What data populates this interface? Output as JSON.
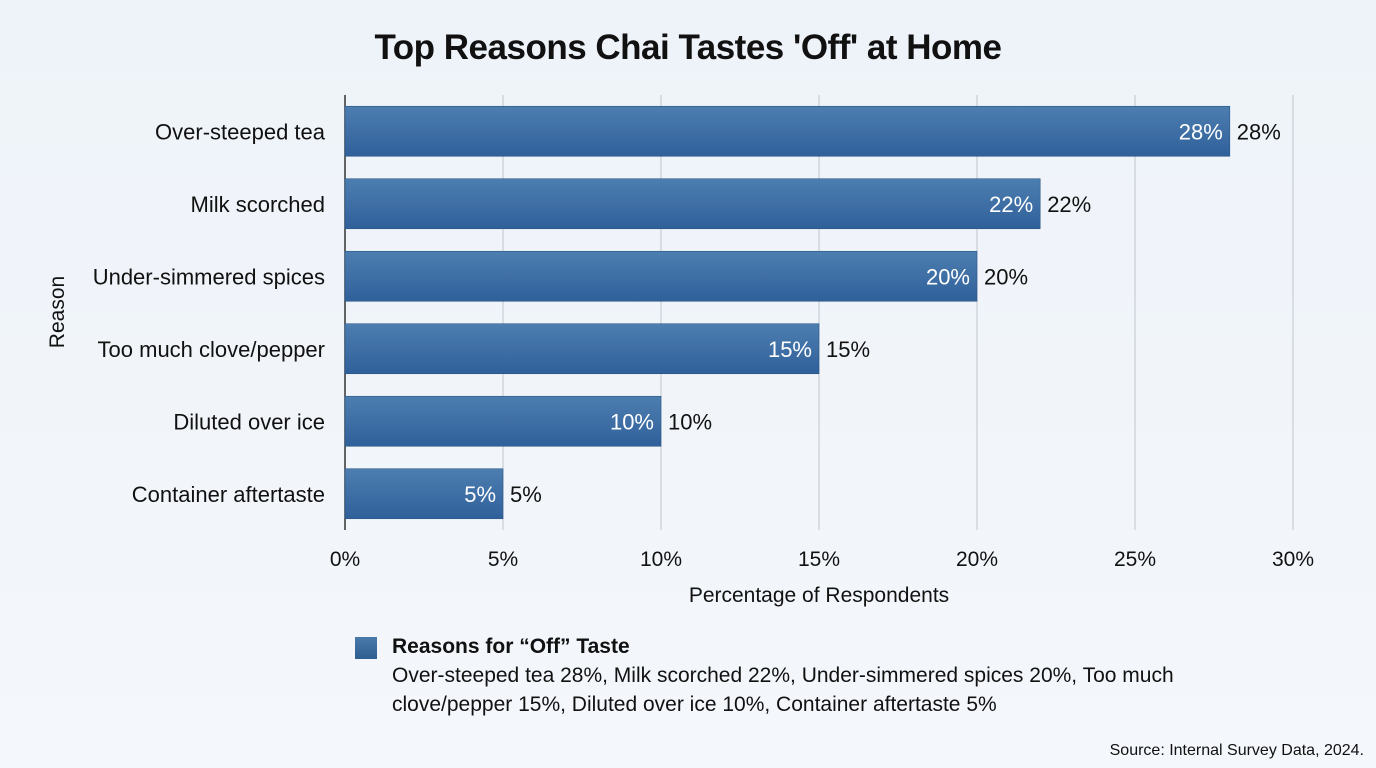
{
  "chart_data": {
    "type": "bar",
    "orientation": "horizontal",
    "title": "Top Reasons Chai Tastes 'Off' at Home",
    "xlabel": "Percentage of Respondents",
    "ylabel": "Reason",
    "categories": [
      "Over-steeped tea",
      "Milk scorched",
      "Under-simmered spices",
      "Too much clove/pepper",
      "Diluted over ice",
      "Container aftertaste"
    ],
    "series": [
      {
        "name": "Reasons for “Off” Taste",
        "values": [
          28,
          22,
          20,
          15,
          10,
          5
        ]
      }
    ],
    "xlim": [
      0,
      30
    ],
    "xticks": [
      "0%",
      "5%",
      "10%",
      "15%",
      "20%",
      "25%",
      "30%"
    ],
    "grid": true,
    "bar_color": "#3b6a9c",
    "legend": {
      "placement": "bottom",
      "title": "Reasons for “Off” Taste",
      "description": "Over-steeped tea 28%, Milk scorched 22%, Under-simmered spices 20%, Too much clove/pepper 15%, Diluted over ice 10%, Container aftertaste 5%"
    },
    "source": "Source: Internal Survey Data, 2024."
  }
}
